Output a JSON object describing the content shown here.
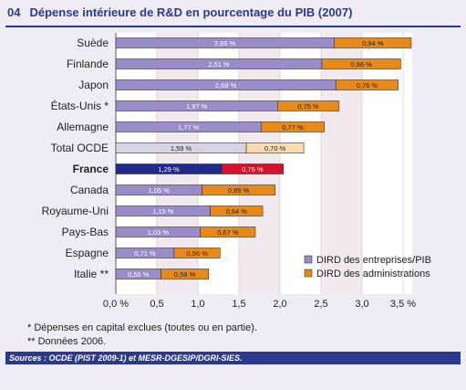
{
  "header": {
    "number": "04",
    "title": "Dépense intérieure de R&D en pourcentage du PIB (2007)"
  },
  "chart_data": {
    "type": "bar",
    "orientation": "horizontal",
    "stacked": true,
    "categories": [
      "Suède",
      "Finlande",
      "Japon",
      "États-Unis *",
      "Allemagne",
      "Total OCDE",
      "France",
      "Canada",
      "Royaume-Uni",
      "Pays-Bas",
      "Espagne",
      "Italie **"
    ],
    "series": [
      {
        "name": "DIRD des entreprises/PIB",
        "values": [
          2.66,
          2.51,
          2.68,
          1.97,
          1.77,
          1.59,
          1.29,
          1.05,
          1.15,
          1.03,
          0.71,
          0.55
        ],
        "labels": [
          "2,66 %",
          "2,51 %",
          "2,68 %",
          "1,97 %",
          "1,77 %",
          "1,59 %",
          "1,29 %",
          "1,05 %",
          "1,15 %",
          "1,03 %",
          "0,71 %",
          "0,55 %"
        ]
      },
      {
        "name": "DIRD des administrations",
        "values": [
          0.94,
          0.96,
          0.76,
          0.75,
          0.77,
          0.7,
          0.75,
          0.89,
          0.64,
          0.67,
          0.56,
          0.58
        ],
        "labels": [
          "0,94 %",
          "0,96 %",
          "0,76 %",
          "0,75 %",
          "0,77 %",
          "0,70 %",
          "0,75 %",
          "0,89 %",
          "0,64 %",
          "0,67 %",
          "0,56 %",
          "0,58 %"
        ]
      }
    ],
    "highlight": {
      "Total OCDE": {
        "colors": [
          "#d8d4e6",
          "#fbdcb0"
        ]
      },
      "France": {
        "colors": [
          "#1f2a8c",
          "#d8102a"
        ]
      }
    },
    "colors": [
      "#9a8cc8",
      "#e88a1a"
    ],
    "xlim": [
      0,
      3.5
    ],
    "xticks": [
      0,
      0.5,
      1.0,
      1.5,
      2.0,
      2.5,
      3.0,
      3.5
    ],
    "xtick_labels": [
      "0,0 %",
      "0,5",
      "1,0",
      "1,5",
      "2,0",
      "2,5",
      "3,0",
      "3,5 %"
    ],
    "grid": true,
    "legend_position": "bottom-right"
  },
  "footnotes": [
    "* Dépenses en capital exclues (toutes ou en partie).",
    "** Données 2006."
  ],
  "sources": "Sources : OCDE (PIST 2009-1) et MESR-DGESIP/DGRI-SIES."
}
